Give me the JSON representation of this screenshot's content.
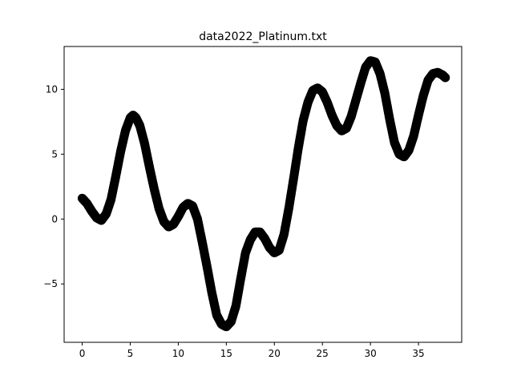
{
  "chart_data": {
    "type": "scatter",
    "title": "data2022_Platinum.txt",
    "xlabel": "",
    "ylabel": "",
    "xlim": [
      -1.88,
      39.5
    ],
    "ylim": [
      -9.5,
      13.3
    ],
    "x_ticks": [
      0,
      5,
      10,
      15,
      20,
      25,
      30,
      35
    ],
    "y_ticks": [
      -5,
      0,
      5,
      10
    ],
    "x_tick_labels": [
      "0",
      "5",
      "10",
      "15",
      "20",
      "25",
      "30",
      "35"
    ],
    "y_tick_labels": [
      "−5",
      "0",
      "5",
      "10"
    ],
    "grid": false,
    "marker_color": "#000000",
    "series": [
      {
        "x": [
          0.0,
          0.5,
          1.0,
          1.5,
          2.0,
          2.5,
          3.0,
          3.5,
          4.0,
          4.5,
          5.0,
          5.3,
          5.6,
          6.0,
          6.5,
          7.0,
          7.5,
          8.0,
          8.5,
          9.0,
          9.5,
          10.0,
          10.5,
          11.0,
          11.5,
          12.0,
          12.5,
          13.0,
          13.5,
          14.0,
          14.5,
          15.0,
          15.5,
          16.0,
          16.5,
          17.0,
          17.5,
          18.0,
          18.5,
          19.0,
          19.5,
          20.0,
          20.5,
          21.0,
          21.5,
          22.0,
          22.5,
          23.0,
          23.5,
          24.0,
          24.5,
          25.0,
          25.5,
          26.0,
          26.5,
          27.0,
          27.5,
          28.0,
          28.5,
          29.0,
          29.5,
          30.0,
          30.5,
          31.0,
          31.5,
          32.0,
          32.5,
          33.0,
          33.5,
          34.0,
          34.5,
          35.0,
          35.5,
          36.0,
          36.5,
          37.0,
          37.5,
          37.8
        ],
        "y": [
          1.6,
          1.2,
          0.6,
          0.1,
          -0.1,
          0.4,
          1.5,
          3.3,
          5.2,
          6.8,
          7.8,
          8.0,
          7.8,
          7.2,
          5.8,
          4.0,
          2.3,
          0.8,
          -0.2,
          -0.6,
          -0.4,
          0.2,
          0.9,
          1.2,
          1.0,
          0.0,
          -1.8,
          -3.7,
          -5.7,
          -7.4,
          -8.1,
          -8.3,
          -7.9,
          -6.7,
          -4.6,
          -2.6,
          -1.6,
          -1.0,
          -1.0,
          -1.5,
          -2.2,
          -2.6,
          -2.4,
          -1.2,
          0.8,
          3.1,
          5.5,
          7.6,
          9.0,
          9.9,
          10.1,
          9.8,
          9.0,
          8.0,
          7.2,
          6.8,
          7.0,
          7.9,
          9.2,
          10.5,
          11.7,
          12.2,
          12.1,
          11.2,
          9.7,
          7.7,
          5.9,
          5.0,
          4.8,
          5.3,
          6.4,
          8.0,
          9.5,
          10.7,
          11.2,
          11.3,
          11.1,
          10.9
        ]
      }
    ]
  }
}
